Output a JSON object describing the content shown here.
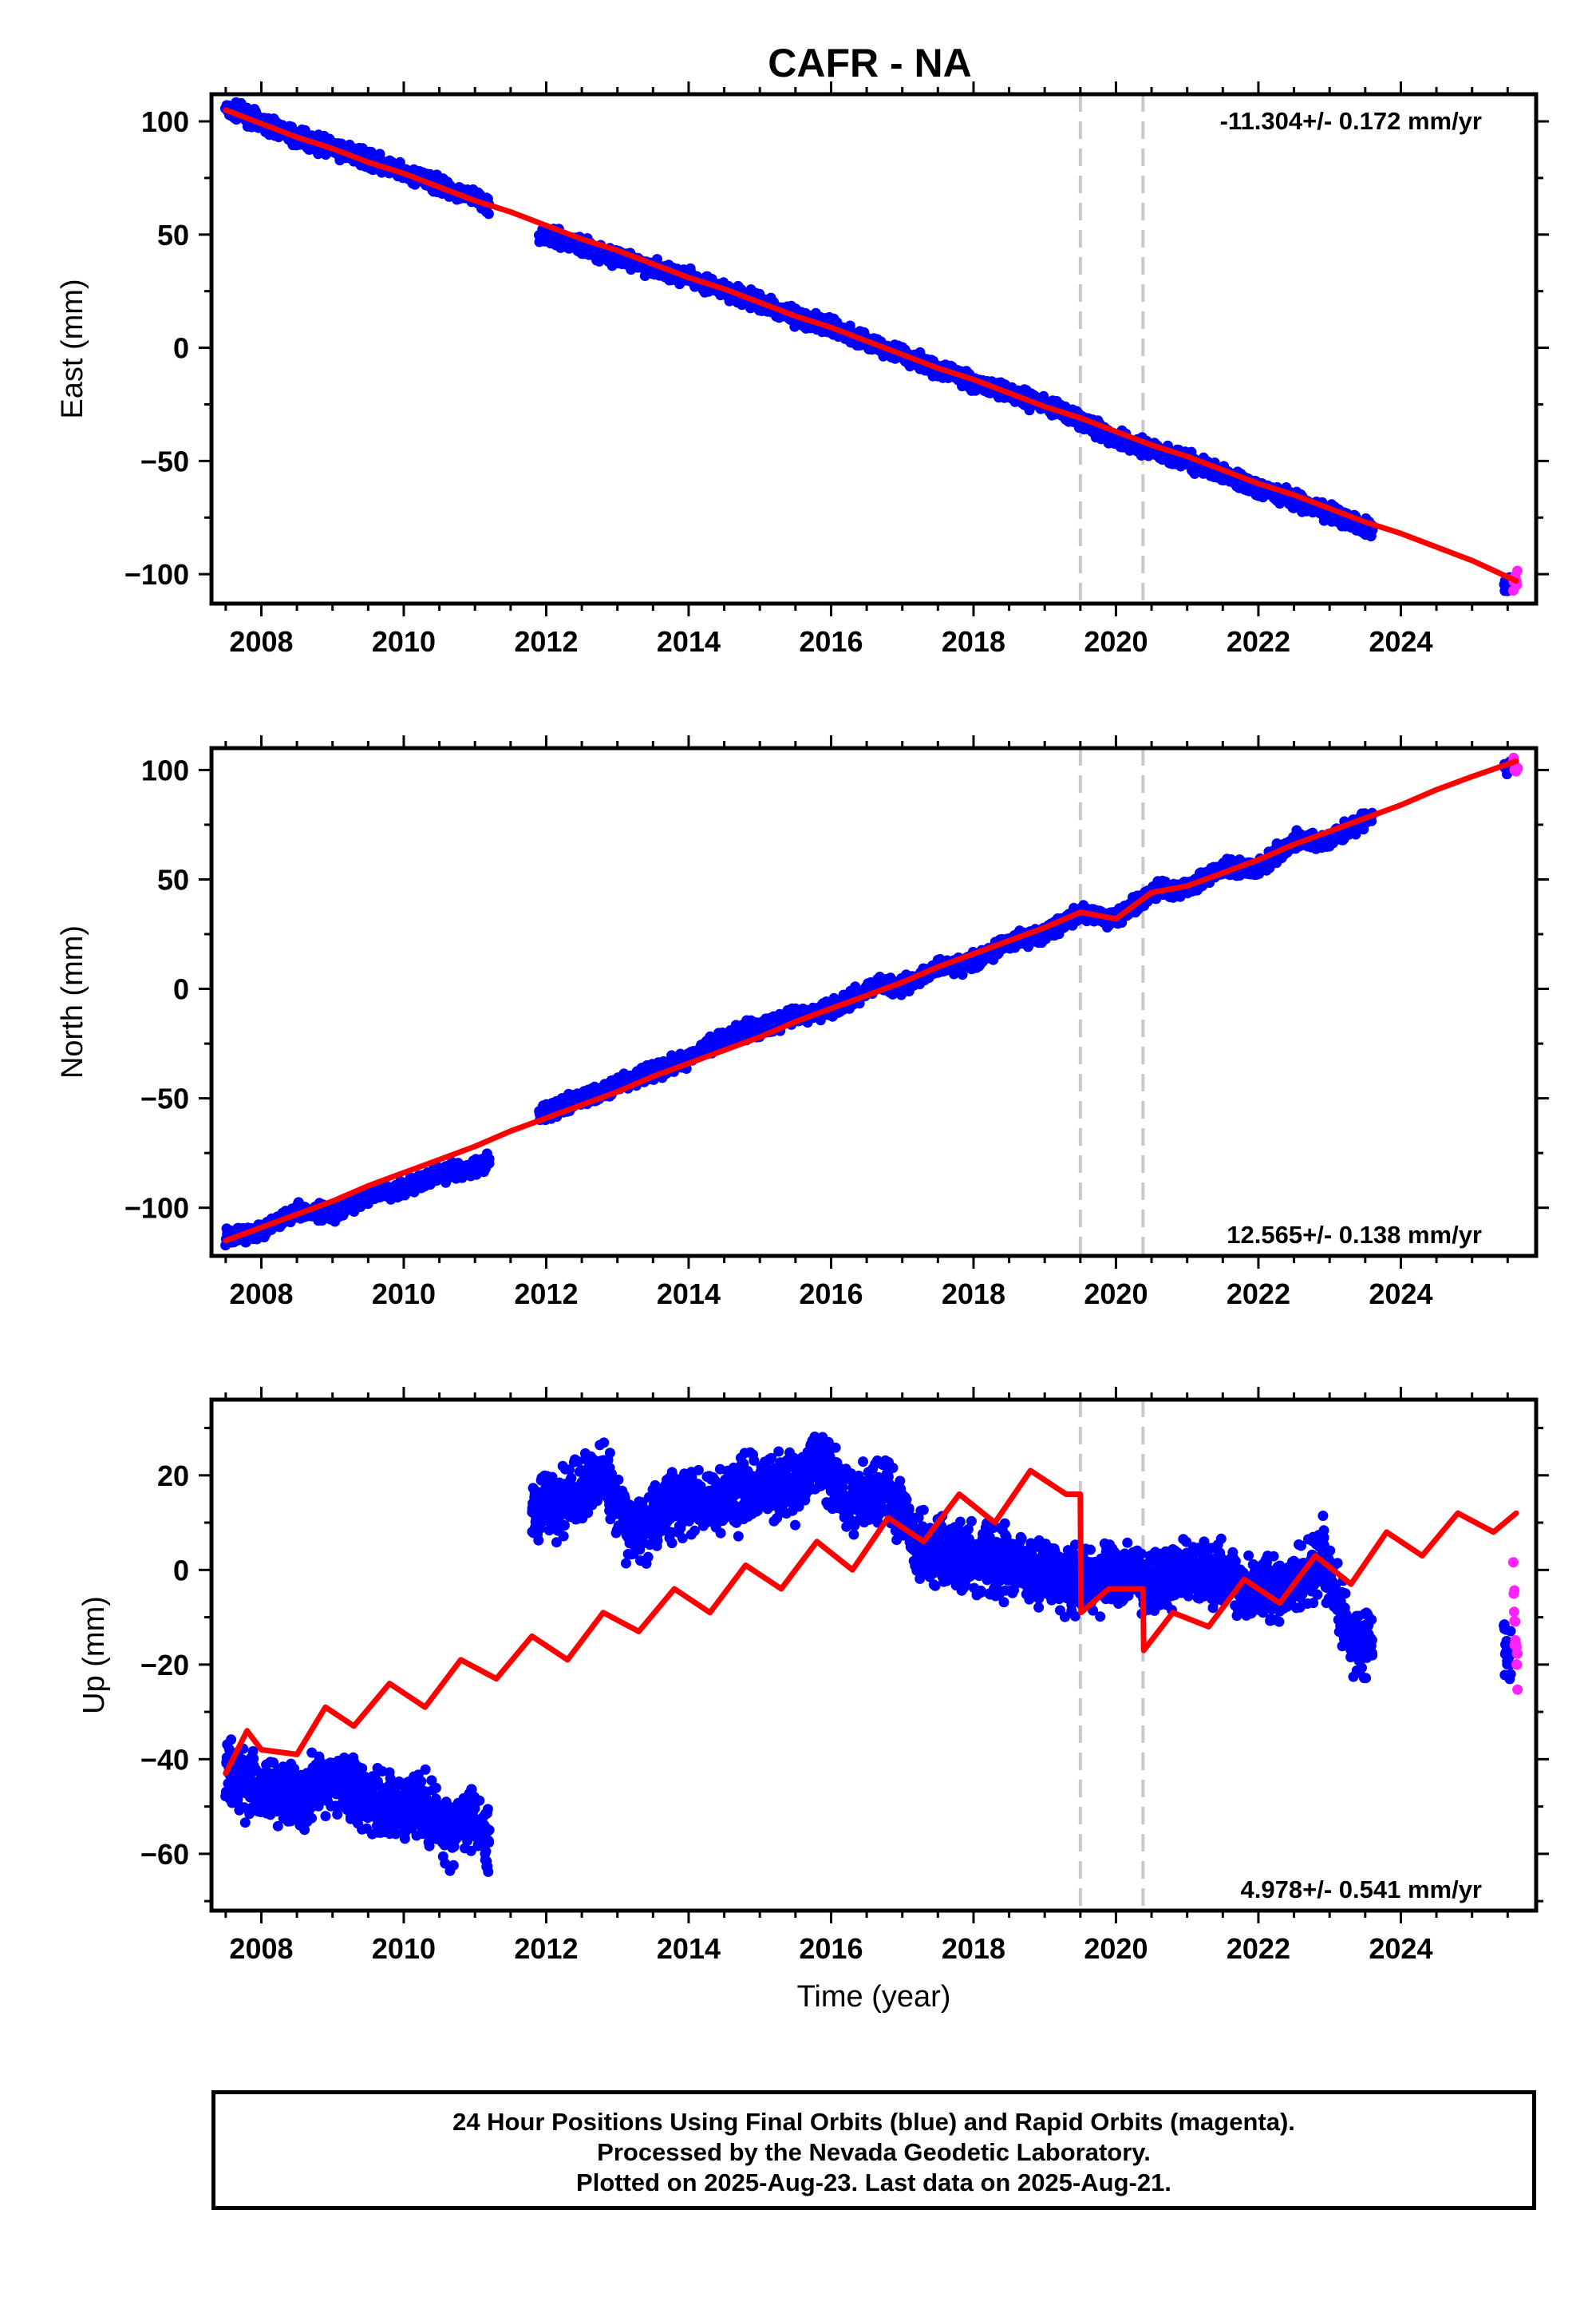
{
  "title": "CAFR - NA",
  "colors": {
    "final_orbits": "#0000ff",
    "rapid_orbits": "#ff22ff",
    "model": "#ff0000",
    "event_lines": "#c8c8c8",
    "frame": "#000000"
  },
  "footer": {
    "line1": "24 Hour Positions Using Final Orbits (blue) and Rapid Orbits (magenta).",
    "line2": "Processed by the Nevada Geodetic Laboratory.",
    "line3": "Plotted on 2025-Aug-23. Last data on 2025-Aug-21."
  },
  "chart_data": [
    {
      "type": "scatter",
      "ylabel": "East (mm)",
      "xlabel": "",
      "xlim": [
        2007.3,
        2025.9
      ],
      "ylim": [
        -113,
        112
      ],
      "xticks": [
        2008,
        2010,
        2012,
        2014,
        2016,
        2018,
        2020,
        2022,
        2024
      ],
      "yticks": [
        -100,
        -50,
        0,
        50,
        100
      ],
      "rate_label": "-11.304+/- 0.172 mm/yr",
      "rate_label_position": "top-right",
      "event_lines_x": [
        2019.5,
        2020.38
      ],
      "series": [
        {
          "name": "Final Orbits (blue)",
          "style": "points",
          "segments": [
            {
              "x": [
                2007.5,
                2008.0,
                2008.5,
                2009.0,
                2009.5,
                2010.0,
                2010.5,
                2011.0,
                2011.2
              ],
              "y": [
                106,
                100,
                93,
                88,
                83,
                77,
                72,
                66,
                63
              ]
            },
            {
              "x": [
                2011.9,
                2012.5,
                2013.0,
                2013.5,
                2014.0,
                2014.5,
                2015.0,
                2015.5,
                2016.0,
                2016.5,
                2017.0,
                2017.5,
                2018.0,
                2018.5,
                2019.0,
                2019.5,
                2020.0,
                2020.5,
                2021.0,
                2021.5,
                2022.0,
                2022.5,
                2023.0,
                2023.6
              ],
              "y": [
                50,
                45,
                40,
                35,
                31,
                25,
                20,
                14,
                9,
                3,
                -3,
                -9,
                -15,
                -20,
                -25,
                -32,
                -40,
                -45,
                -50,
                -56,
                -62,
                -67,
                -73,
                -80
              ]
            },
            {
              "x": [
                2025.45,
                2025.5,
                2025.55
              ],
              "y": [
                -106,
                -104,
                -103
              ]
            }
          ]
        },
        {
          "name": "Rapid Orbits (magenta)",
          "style": "points",
          "segments": [
            {
              "x": [
                2025.58,
                2025.62,
                2025.64
              ],
              "y": [
                -104,
                -101,
                -102
              ]
            }
          ]
        },
        {
          "name": "Model",
          "style": "line",
          "x": [
            2007.5,
            2008.0,
            2008.5,
            2009.0,
            2009.5,
            2010.0,
            2010.5,
            2011.0,
            2011.5,
            2012.0,
            2012.5,
            2013.0,
            2013.5,
            2014.0,
            2014.5,
            2015.0,
            2015.5,
            2016.0,
            2016.5,
            2017.0,
            2017.5,
            2018.0,
            2018.5,
            2019.0,
            2019.5,
            2020.0,
            2020.5,
            2021.0,
            2021.5,
            2022.0,
            2022.5,
            2023.0,
            2023.5,
            2024.0,
            2024.5,
            2025.0,
            2025.62
          ],
          "y": [
            105,
            99,
            93,
            88,
            82,
            77,
            71,
            65,
            60,
            54,
            48,
            43,
            37,
            31,
            26,
            20,
            14,
            9,
            3,
            -3,
            -9,
            -14,
            -20,
            -26,
            -31,
            -37,
            -43,
            -48,
            -54,
            -60,
            -65,
            -71,
            -77,
            -82,
            -88,
            -94,
            -103
          ]
        }
      ]
    },
    {
      "type": "scatter",
      "ylabel": "North (mm)",
      "xlabel": "",
      "xlim": [
        2007.3,
        2025.9
      ],
      "ylim": [
        -122,
        110
      ],
      "xticks": [
        2008,
        2010,
        2012,
        2014,
        2016,
        2018,
        2020,
        2022,
        2024
      ],
      "yticks": [
        -100,
        -50,
        0,
        50,
        100
      ],
      "rate_label": "12.565+/- 0.138 mm/yr",
      "rate_label_position": "bottom-right",
      "event_lines_x": [
        2019.5,
        2020.38
      ],
      "series": [
        {
          "name": "Final Orbits (blue)",
          "style": "points",
          "segments": [
            {
              "x": [
                2007.5,
                2008.0,
                2008.5,
                2009.0,
                2009.5,
                2010.0,
                2010.5,
                2011.0,
                2011.2
              ],
              "y": [
                -114,
                -110,
                -101,
                -103,
                -95,
                -91,
                -84,
                -82,
                -78
              ]
            },
            {
              "x": [
                2011.9,
                2012.5,
                2013.0,
                2013.5,
                2014.0,
                2014.5,
                2015.0,
                2015.5,
                2016.0,
                2016.5,
                2017.0,
                2017.5,
                2018.0,
                2018.5,
                2019.0,
                2019.5,
                2020.0,
                2020.5,
                2021.0,
                2021.5,
                2022.0,
                2022.5,
                2023.0,
                2023.6
              ],
              "y": [
                -58,
                -50,
                -44,
                -38,
                -32,
                -22,
                -18,
                -12,
                -10,
                0,
                2,
                10,
                12,
                22,
                25,
                35,
                32,
                44,
                46,
                55,
                55,
                68,
                68,
                79
              ]
            },
            {
              "x": [
                2025.45,
                2025.5,
                2025.55
              ],
              "y": [
                99,
                101,
                102
              ]
            }
          ]
        },
        {
          "name": "Rapid Orbits (magenta)",
          "style": "points",
          "segments": [
            {
              "x": [
                2025.58,
                2025.62,
                2025.64
              ],
              "y": [
                102,
                100,
                101
              ]
            }
          ]
        },
        {
          "name": "Model",
          "style": "line",
          "x": [
            2007.5,
            2008.0,
            2008.5,
            2009.0,
            2009.5,
            2010.0,
            2010.5,
            2011.0,
            2011.5,
            2012.0,
            2012.5,
            2013.0,
            2013.5,
            2014.0,
            2014.5,
            2015.0,
            2015.5,
            2016.0,
            2016.5,
            2017.0,
            2017.5,
            2018.0,
            2018.5,
            2019.0,
            2019.5,
            2020.0,
            2020.5,
            2021.0,
            2021.5,
            2022.0,
            2022.5,
            2023.0,
            2023.5,
            2024.0,
            2024.5,
            2025.0,
            2025.62
          ],
          "y": [
            -115,
            -109,
            -103,
            -97,
            -90,
            -84,
            -78,
            -72,
            -65,
            -59,
            -53,
            -47,
            -40,
            -34,
            -28,
            -22,
            -15,
            -9,
            -3,
            3,
            10,
            16,
            22,
            28,
            35,
            32,
            44,
            47,
            53,
            59,
            66,
            72,
            78,
            84,
            91,
            97,
            104
          ]
        }
      ]
    },
    {
      "type": "scatter",
      "ylabel": "Up (mm)",
      "xlabel": "Time (year)",
      "xlim": [
        2007.3,
        2025.9
      ],
      "ylim": [
        -72,
        36
      ],
      "xticks": [
        2008,
        2010,
        2012,
        2014,
        2016,
        2018,
        2020,
        2022,
        2024
      ],
      "yticks": [
        -60,
        -40,
        -20,
        0,
        20
      ],
      "rate_label": "4.978+/- 0.541 mm/yr",
      "rate_label_position": "bottom-right",
      "event_lines_x": [
        2019.5,
        2020.38
      ],
      "series": [
        {
          "name": "Final Orbits (blue)",
          "style": "points",
          "segments": [
            {
              "x": [
                2007.5,
                2007.8,
                2008.2,
                2008.6,
                2009.0,
                2009.4,
                2009.8,
                2010.2,
                2010.6,
                2011.0,
                2011.2
              ],
              "y": [
                -43,
                -45,
                -47,
                -48,
                -44,
                -48,
                -50,
                -49,
                -55,
                -52,
                -58
              ]
            },
            {
              "x": [
                2011.8,
                2012.3,
                2012.8,
                2013.2,
                2013.6,
                2014.0,
                2014.5,
                2015.0,
                2015.5,
                2015.8,
                2016.2,
                2016.8,
                2017.2,
                2017.6,
                2018.0,
                2018.5,
                2019.0,
                2019.5,
                2020.0,
                2020.5,
                2021.0,
                2021.5,
                2022.0,
                2022.5,
                2022.9,
                2023.3,
                2023.6
              ],
              "y": [
                13,
                15,
                20,
                8,
                12,
                15,
                14,
                18,
                17,
                25,
                14,
                17,
                5,
                4,
                2,
                2,
                -1,
                -2,
                -1,
                -2,
                -1,
                -1,
                -5,
                -3,
                3,
                -15,
                -15
              ]
            },
            {
              "x": [
                2025.45,
                2025.5,
                2025.55
              ],
              "y": [
                -15,
                -17,
                -18
              ]
            }
          ]
        },
        {
          "name": "Rapid Orbits (magenta)",
          "style": "points",
          "segments": [
            {
              "x": [
                2025.58,
                2025.6,
                2025.62,
                2025.64
              ],
              "y": [
                -2,
                -12,
                -16,
                -20
              ]
            }
          ]
        },
        {
          "name": "Model",
          "style": "line",
          "x": [
            2007.5,
            2007.8,
            2008.0,
            2008.5,
            2008.9,
            2009.3,
            2009.8,
            2010.3,
            2010.8,
            2011.3,
            2011.8,
            2012.3,
            2012.8,
            2013.3,
            2013.8,
            2014.3,
            2014.8,
            2015.3,
            2015.8,
            2016.3,
            2016.8,
            2017.3,
            2017.8,
            2018.3,
            2018.8,
            2019.3,
            2019.5,
            2019.51,
            2019.9,
            2020.38,
            2020.39,
            2020.8,
            2021.3,
            2021.8,
            2022.3,
            2022.8,
            2023.3,
            2023.8,
            2024.3,
            2024.8,
            2025.3,
            2025.62
          ],
          "y": [
            -43,
            -34,
            -38,
            -39,
            -29,
            -33,
            -24,
            -29,
            -19,
            -23,
            -14,
            -19,
            -9,
            -13,
            -4,
            -9,
            1,
            -4,
            6,
            0,
            11,
            6,
            16,
            10,
            21,
            16,
            16,
            -9,
            -4,
            -4,
            -17,
            -9,
            -12,
            -2,
            -7,
            3,
            -3,
            8,
            3,
            12,
            8,
            12
          ]
        }
      ]
    }
  ]
}
